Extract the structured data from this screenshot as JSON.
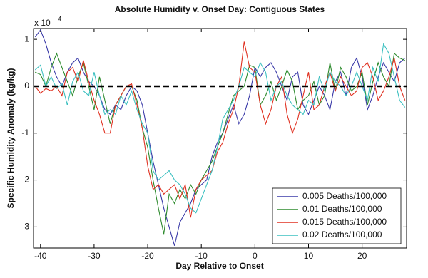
{
  "chart_data": {
    "type": "line",
    "title": "Absolute Humidity v. Onset Day: Contiguous States",
    "x_label": "Day Relative to Onset",
    "y_label": "Specific Humidity Anomaly (kg/kg)",
    "y_multiplier": "x 10",
    "y_exponent": "−4",
    "x": [
      -41,
      -40,
      -39,
      -38,
      -37,
      -36,
      -35,
      -34,
      -33,
      -32,
      -31,
      -30,
      -29,
      -28,
      -27,
      -26,
      -25,
      -24,
      -23,
      -22,
      -21,
      -20,
      -19,
      -18,
      -17,
      -16,
      -15,
      -14,
      -13,
      -12,
      -11,
      -10,
      -9,
      -8,
      -7,
      -6,
      -5,
      -4,
      -3,
      -2,
      -1,
      0,
      1,
      2,
      3,
      4,
      5,
      6,
      7,
      8,
      9,
      10,
      11,
      12,
      13,
      14,
      15,
      16,
      17,
      18,
      19,
      20,
      21,
      22,
      23,
      24,
      25,
      26,
      27,
      28
    ],
    "series": [
      {
        "name": "0.005 Deaths/100,000",
        "color": "#3a3aa8",
        "values": [
          1.05,
          1.2,
          0.9,
          0.5,
          0.2,
          0.0,
          0.3,
          0.5,
          0.6,
          0.3,
          0.1,
          0.0,
          -0.2,
          -0.5,
          -0.6,
          -0.4,
          -0.5,
          -0.2,
          0.0,
          -0.1,
          -0.4,
          -1.0,
          -1.6,
          -2.1,
          -2.6,
          -3.0,
          -3.4,
          -2.9,
          -2.7,
          -2.5,
          -2.2,
          -2.1,
          -2.0,
          -1.5,
          -1.2,
          -1.0,
          -0.7,
          -0.4,
          -0.8,
          -0.6,
          -0.2,
          0.4,
          0.2,
          0.4,
          0.5,
          0.3,
          0.0,
          -0.3,
          0.2,
          0.3,
          -0.4,
          -0.6,
          -0.3,
          0.0,
          -0.2,
          -0.5,
          0.1,
          0.3,
          -0.2,
          0.4,
          0.6,
          0.2,
          -0.5,
          -0.2,
          0.2,
          0.5,
          0.3,
          0.1,
          0.5,
          0.6
        ]
      },
      {
        "name": "0.01 Deaths/100,000",
        "color": "#2e8b2e",
        "values": [
          0.3,
          0.25,
          0.0,
          0.4,
          0.7,
          0.4,
          0.1,
          -0.2,
          0.2,
          0.5,
          0.0,
          -0.5,
          0.2,
          -0.3,
          -0.8,
          -0.4,
          -0.2,
          0.0,
          0.0,
          -0.3,
          -0.9,
          -1.3,
          -2.0,
          -2.6,
          -3.15,
          -2.3,
          -2.5,
          -2.2,
          -2.4,
          -2.1,
          -2.3,
          -2.0,
          -1.8,
          -1.6,
          -1.3,
          -1.0,
          -0.6,
          -0.2,
          -0.1,
          0.0,
          0.45,
          0.4,
          -0.4,
          -0.2,
          0.1,
          -0.3,
          0.0,
          0.35,
          0.1,
          -0.5,
          -0.3,
          -0.2,
          0.1,
          -0.4,
          -0.2,
          0.5,
          -0.1,
          0.4,
          0.2,
          -0.1,
          0.0,
          0.3,
          -0.4,
          0.1,
          0.5,
          0.2,
          0.0,
          0.7,
          0.6,
          0.55
        ]
      },
      {
        "name": "0.015 Deaths/100,000",
        "color": "#e03020",
        "values": [
          0.0,
          -0.15,
          -0.05,
          -0.1,
          0.0,
          -0.2,
          0.3,
          0.4,
          0.1,
          0.55,
          0.1,
          -0.3,
          -0.6,
          -1.0,
          -1.0,
          -0.4,
          -0.2,
          0.0,
          0.05,
          -0.4,
          -0.9,
          -1.7,
          -2.2,
          -2.1,
          -2.3,
          -2.2,
          -2.1,
          -2.4,
          -2.1,
          -2.8,
          -2.2,
          -2.0,
          -1.9,
          -1.8,
          -1.4,
          -1.2,
          -0.8,
          -0.5,
          0.0,
          0.95,
          0.4,
          0.3,
          -0.4,
          -0.8,
          -0.5,
          0.0,
          0.2,
          -0.6,
          -1.0,
          -0.7,
          -0.2,
          0.3,
          -0.5,
          -0.4,
          0.0,
          0.3,
          -0.1,
          0.2,
          0.0,
          -0.2,
          -0.1,
          0.4,
          0.5,
          0.2,
          -0.3,
          -0.1,
          0.2,
          0.6,
          0.0,
          -0.3
        ]
      },
      {
        "name": "0.02 Deaths/100,000",
        "color": "#3cc0c0",
        "values": [
          0.35,
          0.45,
          0.0,
          0.2,
          -0.05,
          0.05,
          -0.4,
          0.1,
          0.3,
          -0.1,
          -0.2,
          0.3,
          -0.2,
          -0.6,
          -0.5,
          -0.6,
          -0.2,
          -0.4,
          -0.1,
          -0.5,
          -0.8,
          -1.0,
          -1.8,
          -2.0,
          -1.9,
          -1.8,
          -2.0,
          -2.1,
          -2.3,
          -2.6,
          -2.7,
          -2.4,
          -2.1,
          -1.8,
          -1.3,
          -0.7,
          -0.5,
          -0.3,
          0.0,
          0.4,
          0.3,
          0.2,
          0.5,
          0.3,
          -0.3,
          0.0,
          0.1,
          -0.2,
          -0.4,
          -0.5,
          -0.6,
          -0.3,
          -0.4,
          0.2,
          -0.1,
          0.3,
          0.1,
          0.0,
          -0.2,
          0.0,
          0.3,
          0.0,
          -0.3,
          0.4,
          0.1,
          0.9,
          0.7,
          0.2,
          -0.3,
          -0.45
        ]
      }
    ],
    "reference_line": 0,
    "xlim": [
      -41.3,
      28.3
    ],
    "ylim": [
      -3.45,
      1.23
    ],
    "xticks": [
      -40,
      -30,
      -20,
      -10,
      0,
      10,
      20
    ],
    "yticks": [
      -3,
      -2,
      -1,
      0,
      1
    ],
    "grid": false,
    "legend": "lower right"
  }
}
